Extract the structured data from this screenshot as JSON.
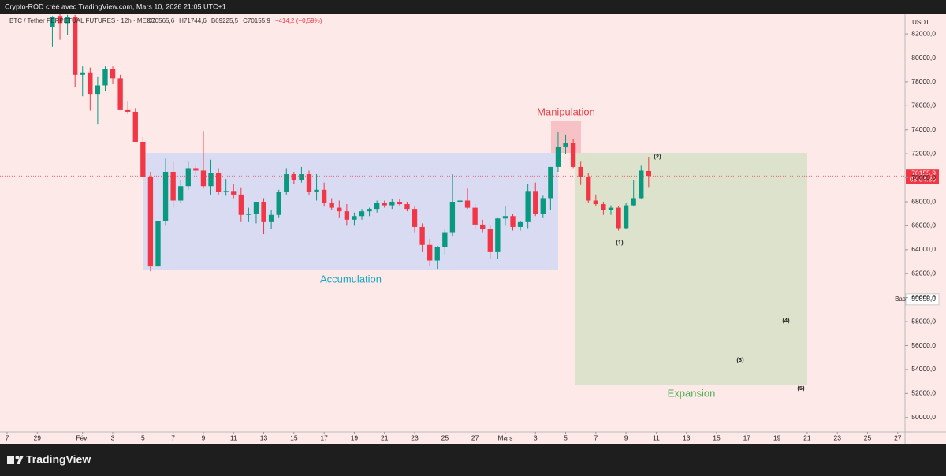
{
  "header": {
    "credit": "Crypto-ROD créé avec TradingView.com, Mars 10, 2026 21:05 UTC+1"
  },
  "footer": {
    "brand": "TradingView"
  },
  "chart_data": {
    "type": "candlestick",
    "title": "BTC / Tether PERPETUAL FUTURES · 12h · MEXC",
    "legend_values": [
      "O70565,6",
      "H71744,6",
      "B69225,5",
      "C70155,9",
      "−414,2 (−0,59%)"
    ],
    "currency": "USDT",
    "colors": {
      "up": "#089981",
      "down": "#f23645"
    },
    "open": [
      82600,
      83500,
      82900,
      83400,
      78600,
      78800,
      77000,
      77700,
      79100,
      78300,
      75700,
      75500,
      73000,
      70100,
      62600,
      66400,
      70500,
      68100,
      69300,
      70800,
      70600,
      69300,
      70400,
      68800,
      68900,
      68600,
      66900,
      67000,
      68000,
      66300,
      66900,
      68800,
      70300,
      69800,
      70300,
      68800,
      69000,
      67900,
      67500,
      67200,
      66500,
      66800,
      67200,
      67400,
      67900,
      67700,
      68000,
      67800,
      67400,
      65900,
      64400,
      63100,
      64200,
      65400,
      68000,
      68100,
      67500,
      66100,
      65700,
      63800,
      66600,
      66800,
      65900,
      66300,
      68900,
      67000,
      68300,
      70900,
      72600,
      72900,
      70900,
      70100,
      68100,
      67800,
      67300,
      67500,
      65800,
      67700,
      68300,
      70565.6
    ],
    "high": [
      83500,
      83700,
      83600,
      83600,
      79300,
      79200,
      78400,
      79300,
      79300,
      78600,
      76400,
      75800,
      73400,
      70500,
      66600,
      71600,
      71400,
      69800,
      71400,
      71000,
      73900,
      71500,
      70800,
      69900,
      69500,
      69200,
      67500,
      68000,
      68300,
      67300,
      69000,
      70800,
      70500,
      70900,
      70600,
      70300,
      69600,
      68300,
      68100,
      67800,
      67100,
      67400,
      67500,
      68100,
      68100,
      68200,
      68200,
      68000,
      67600,
      66200,
      64900,
      64300,
      65700,
      70300,
      68400,
      69100,
      67800,
      66500,
      66000,
      66700,
      67600,
      67000,
      66400,
      69500,
      69600,
      68500,
      70900,
      73800,
      73600,
      73200,
      71400,
      70400,
      68600,
      68000,
      67700,
      67600,
      67900,
      69800,
      71000,
      71744.6
    ],
    "low": [
      80900,
      81500,
      81900,
      77600,
      76800,
      75600,
      74500,
      77200,
      77800,
      75900,
      75300,
      73000,
      70200,
      62200,
      59858,
      66000,
      67500,
      67900,
      69000,
      70300,
      69100,
      68600,
      68600,
      68500,
      68300,
      66300,
      66300,
      66200,
      65300,
      65700,
      66700,
      68600,
      69500,
      69600,
      68600,
      68100,
      67600,
      67300,
      66700,
      66000,
      66000,
      66500,
      66800,
      67100,
      67500,
      67400,
      67700,
      67200,
      65400,
      63800,
      62600,
      62400,
      63600,
      65100,
      67600,
      67400,
      65800,
      65400,
      63200,
      63200,
      66000,
      65600,
      65600,
      65800,
      66800,
      66700,
      67300,
      70500,
      72000,
      70800,
      69400,
      67900,
      67600,
      66900,
      66900,
      65600,
      65700,
      67600,
      68200,
      69225.5
    ],
    "close": [
      83400,
      82900,
      83400,
      78600,
      78800,
      77000,
      77700,
      79100,
      78300,
      75700,
      75500,
      73000,
      70100,
      62600,
      66400,
      70500,
      68100,
      69300,
      70800,
      70600,
      69300,
      70400,
      68800,
      68900,
      68600,
      66900,
      67000,
      68000,
      66300,
      66900,
      68800,
      70300,
      69800,
      70300,
      68800,
      69000,
      67900,
      67500,
      67200,
      66500,
      66800,
      67200,
      67400,
      67900,
      67700,
      68000,
      67800,
      67400,
      65900,
      64400,
      63100,
      64200,
      65400,
      68000,
      68100,
      67500,
      66100,
      65700,
      63800,
      66600,
      66800,
      65900,
      66300,
      68900,
      67000,
      68300,
      70900,
      72600,
      72900,
      70900,
      70100,
      68100,
      67800,
      67300,
      67500,
      65800,
      67700,
      68300,
      70600,
      70155.9
    ],
    "xlim": [
      -6.94,
      112.96
    ],
    "xticks": [
      {
        "value": -6,
        "label": "7"
      },
      {
        "value": -2,
        "label": "29"
      },
      {
        "value": 4,
        "label": "Févr"
      },
      {
        "value": 8,
        "label": "3"
      },
      {
        "value": 12,
        "label": "5"
      },
      {
        "value": 16,
        "label": "7"
      },
      {
        "value": 20,
        "label": "9"
      },
      {
        "value": 24,
        "label": "11"
      },
      {
        "value": 28,
        "label": "13"
      },
      {
        "value": 32,
        "label": "15"
      },
      {
        "value": 36,
        "label": "17"
      },
      {
        "value": 40,
        "label": "19"
      },
      {
        "value": 44,
        "label": "21"
      },
      {
        "value": 48,
        "label": "23"
      },
      {
        "value": 52,
        "label": "25"
      },
      {
        "value": 56,
        "label": "27"
      },
      {
        "value": 60,
        "label": "Mars"
      },
      {
        "value": 64,
        "label": "3"
      },
      {
        "value": 68,
        "label": "5"
      },
      {
        "value": 72,
        "label": "7"
      },
      {
        "value": 76,
        "label": "9"
      },
      {
        "value": 80,
        "label": "11"
      },
      {
        "value": 84,
        "label": "13"
      },
      {
        "value": 88,
        "label": "15"
      },
      {
        "value": 92,
        "label": "17"
      },
      {
        "value": 96,
        "label": "19"
      },
      {
        "value": 100,
        "label": "21"
      },
      {
        "value": 104,
        "label": "23"
      },
      {
        "value": 108,
        "label": "25"
      },
      {
        "value": 112,
        "label": "27"
      }
    ],
    "ylim": [
      48800,
      83650
    ],
    "yticks": [
      {
        "value": 50000,
        "label": "50000,0"
      },
      {
        "value": 52000,
        "label": "52000,0"
      },
      {
        "value": 54000,
        "label": "54000,0"
      },
      {
        "value": 56000,
        "label": "56000,0"
      },
      {
        "value": 58000,
        "label": "58000,0"
      },
      {
        "value": 60000,
        "label": "60000,0"
      },
      {
        "value": 62000,
        "label": "62000,0"
      },
      {
        "value": 64000,
        "label": "64000,0"
      },
      {
        "value": 66000,
        "label": "66000,0"
      },
      {
        "value": 68000,
        "label": "68000,0"
      },
      {
        "value": 70000,
        "label": "70000,0"
      },
      {
        "value": 72000,
        "label": "72000,0"
      },
      {
        "value": 74000,
        "label": "74000,0"
      },
      {
        "value": 76000,
        "label": "76000,0"
      },
      {
        "value": 78000,
        "label": "78000,0"
      },
      {
        "value": 80000,
        "label": "80000,0"
      },
      {
        "value": 82000,
        "label": "82000,0"
      }
    ],
    "last_price": {
      "value": 70155.9,
      "label": "70155,9",
      "countdown": "03:54:39"
    },
    "low_marker": {
      "text": "Bas",
      "value": 59858,
      "label": "59858,0"
    },
    "zones": [
      {
        "label": "Accumulation"
      },
      {
        "label": "Manipulation"
      },
      {
        "label": "Expansion"
      }
    ],
    "wave_labels": [
      "(1)",
      "(2)",
      "(3)",
      "(4)",
      "(5)"
    ]
  }
}
